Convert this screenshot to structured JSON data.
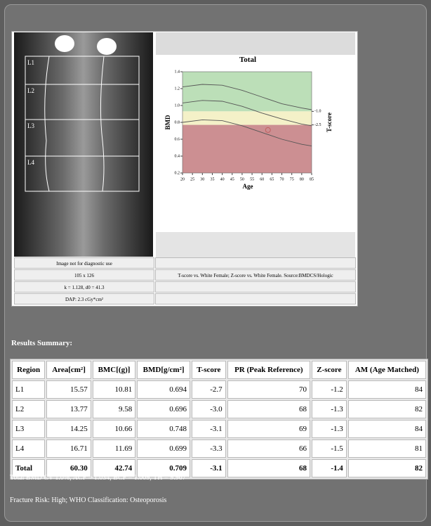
{
  "scan": {
    "regions": [
      "L1",
      "L2",
      "L3",
      "L4"
    ],
    "info": [
      "Image not for diagnostic use",
      "105 x 126",
      "k = 1.128, d0 = 41.3",
      "DAP: 2.3 cGy*cm²"
    ],
    "reference": "T-score vs. White Female; Z-score vs. White Female. Source:BMDCS/Hologic"
  },
  "chart_data": {
    "type": "line",
    "title": "Total",
    "x_label": "Age",
    "y_label": "BMD",
    "y2_label": "T-score",
    "x": [
      20,
      30,
      40,
      50,
      60,
      70,
      80,
      85
    ],
    "series": [
      {
        "color": "#555555",
        "values": [
          1.22,
          1.25,
          1.24,
          1.18,
          1.1,
          1.02,
          0.97,
          0.95
        ]
      },
      {
        "color": "#555555",
        "values": [
          1.03,
          1.06,
          1.05,
          0.99,
          0.91,
          0.84,
          0.78,
          0.76
        ]
      },
      {
        "color": "#555555",
        "values": [
          0.8,
          0.83,
          0.82,
          0.76,
          0.68,
          0.6,
          0.54,
          0.52
        ]
      }
    ],
    "points": [
      {
        "x": 63,
        "y": 0.709,
        "color": "#c06060"
      }
    ],
    "bands": [
      {
        "from": -1,
        "to": 3.4,
        "color": "#bcdfb8",
        "axis": "y2"
      },
      {
        "from": -2.5,
        "to": -1,
        "color": "#f4f1c8",
        "axis": "y2"
      },
      {
        "from": -7.84,
        "to": -2.5,
        "color": "#cc8f92",
        "axis": "y2"
      }
    ],
    "xlim": [
      20,
      85
    ],
    "xticks": [
      20,
      25,
      30,
      35,
      40,
      45,
      50,
      55,
      60,
      65,
      70,
      75,
      80,
      85
    ],
    "ylim": [
      0.2,
      1.4
    ],
    "yticks": [
      0.2,
      0.4,
      0.6,
      0.8,
      {
        "value": 1,
        "label": "1.0"
      },
      1.2,
      1.4
    ],
    "y2lim": [
      -7.84,
      3.4
    ],
    "y2ticks": [
      {
        "value": -1,
        "label": "-1.0"
      },
      -2.5
    ]
  },
  "results": {
    "title": "Results Summary:",
    "columns": [
      "Region",
      "Area[cm²]",
      "BMC[(g)]",
      "BMD[g/cm²]",
      "T-score",
      "PR (Peak Reference)",
      "Z-score",
      "AM (Age Matched)"
    ],
    "rows": [
      [
        "L1",
        "15.57",
        "10.81",
        "0.694",
        "-2.7",
        "70",
        "-1.2",
        "84"
      ],
      [
        "L2",
        "13.77",
        "9.58",
        "0.696",
        "-3.0",
        "68",
        "-1.3",
        "82"
      ],
      [
        "L3",
        "14.25",
        "10.66",
        "0.748",
        "-3.1",
        "69",
        "-1.3",
        "84"
      ],
      [
        "L4",
        "16.71",
        "11.69",
        "0.699",
        "-3.3",
        "66",
        "-1.5",
        "81"
      ],
      [
        "Total",
        "60.30",
        "42.74",
        "0.709",
        "-3.1",
        "68",
        "-1.4",
        "82"
      ]
    ],
    "notes": [
      "Total BMD CV 1.0%, ACF = 1.034, BCF = 1.009, TH = 9.967",
      "Fracture Risk: High; WHO Classification: Osteoporosis"
    ]
  }
}
